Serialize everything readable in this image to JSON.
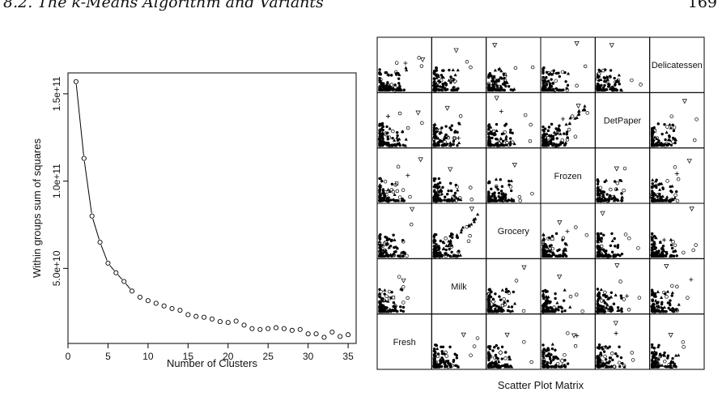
{
  "header": {
    "section": "8.2.   The k-Means Algorithm and Variants",
    "page": "169"
  },
  "chart_data": [
    {
      "type": "line",
      "xlabel": "Number of Clusters",
      "ylabel": "Within groups sum of squares",
      "xlim": [
        0,
        36
      ],
      "ylim": [
        7000000000,
        162000000000
      ],
      "x_ticks": [
        {
          "value": 0,
          "label": "0"
        },
        {
          "value": 5,
          "label": "5"
        },
        {
          "value": 10,
          "label": "10"
        },
        {
          "value": 15,
          "label": "15"
        },
        {
          "value": 20,
          "label": "20"
        },
        {
          "value": 25,
          "label": "25"
        },
        {
          "value": 30,
          "label": "30"
        },
        {
          "value": 35,
          "label": "35"
        }
      ],
      "y_ticks": [
        {
          "value": 50000000000,
          "label": "5.0e+10"
        },
        {
          "value": 100000000000,
          "label": "1.0e+11"
        },
        {
          "value": 150000000000,
          "label": "1.5e+11"
        }
      ],
      "x": [
        1,
        2,
        3,
        4,
        5,
        6,
        7,
        8,
        9,
        10,
        11,
        12,
        13,
        14,
        15,
        16,
        17,
        18,
        19,
        20,
        21,
        22,
        23,
        24,
        25,
        26,
        27,
        28,
        29,
        30,
        31,
        32,
        33,
        34,
        35
      ],
      "values": [
        157000000000,
        113000000000,
        80000000000,
        65000000000,
        53000000000,
        47500000000,
        42500000000,
        37000000000,
        33500000000,
        31500000000,
        30000000000,
        28500000000,
        27000000000,
        26000000000,
        23500000000,
        22500000000,
        22000000000,
        21000000000,
        19500000000,
        19000000000,
        19800000000,
        17500000000,
        15500000000,
        15000000000,
        15500000000,
        16000000000,
        15500000000,
        14500000000,
        15000000000,
        12500000000,
        12500000000,
        10500000000,
        13500000000,
        11000000000,
        12000000000
      ],
      "marker": "open-circle",
      "line_segments_through_x": 8,
      "grid": false
    },
    {
      "type": "scatter",
      "title": "Scatter Plot Matrix",
      "variables_top_to_bottom": [
        "Delicatessen",
        "DetPaper",
        "Frozen",
        "Grocery",
        "Milk",
        "Fresh"
      ],
      "marker_types": [
        "filled-circle",
        "open-circle",
        "filled-triangle",
        "open-triangle-down",
        "plus",
        "open-square",
        "open-diamond"
      ],
      "grid": false
    }
  ]
}
